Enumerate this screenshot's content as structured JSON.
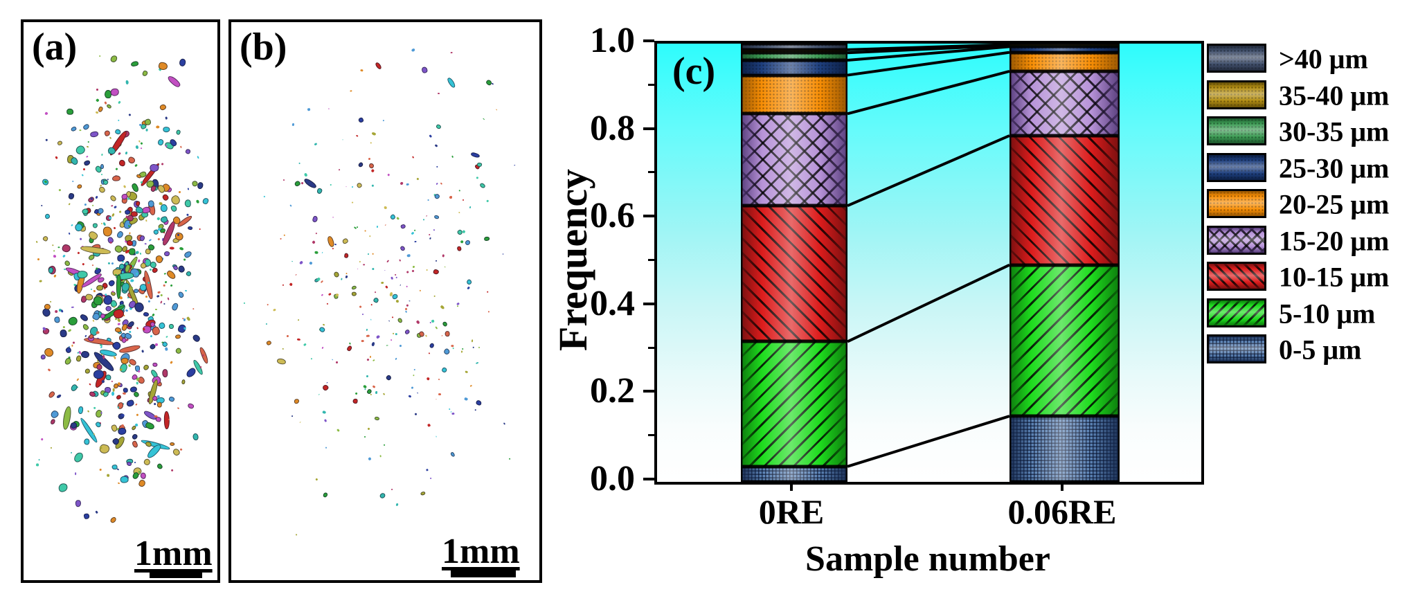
{
  "figure": {
    "panels": [
      {
        "id": "a",
        "label": "(a)",
        "scale_label": "1mm"
      },
      {
        "id": "b",
        "label": "(b)",
        "scale_label": "1mm"
      }
    ],
    "chart": {
      "label": "(c)",
      "ylabel": "Frequency",
      "xlabel": "Sample number",
      "ytick_labels": [
        "1.0",
        "0.8",
        "0.6",
        "0.4",
        "0.2",
        "0.0"
      ],
      "background_top_color": "#2efcfc",
      "background_bottom_color": "#ffffff"
    }
  },
  "chart_data": {
    "type": "bar",
    "stacked": true,
    "title": "",
    "xlabel": "Sample number",
    "ylabel": "Frequency",
    "categories": [
      "0RE",
      "0.06RE"
    ],
    "ylim": [
      0.0,
      1.0
    ],
    "yticks_major": [
      0.0,
      0.2,
      0.4,
      0.6,
      0.8,
      1.0
    ],
    "yticks_minor": [
      0.1,
      0.3,
      0.5,
      0.7,
      0.9
    ],
    "legend_position": "right",
    "legend_order_top_to_bottom": [
      ">40 μm",
      "35-40 μm",
      "30-35 μm",
      "25-30 μm",
      "20-25 μm",
      "15-20 μm",
      "10-15 μm",
      "5-10 μm",
      "0-5 μm"
    ],
    "connector_lines_between_bars": true,
    "series": [
      {
        "name": "0-5 μm",
        "values": [
          0.035,
          0.15
        ],
        "color": "#5b82b4",
        "edge": "#15284c",
        "pattern": "fine-grid"
      },
      {
        "name": "5-10 μm",
        "values": [
          0.285,
          0.345
        ],
        "color": "#1edc1e",
        "edge": "#0b720b",
        "pattern": "hatch-up"
      },
      {
        "name": "10-15 μm",
        "values": [
          0.31,
          0.295
        ],
        "color": "#dc1c1c",
        "edge": "#6e0e0e",
        "pattern": "hatch-down"
      },
      {
        "name": "15-20 μm",
        "values": [
          0.21,
          0.147
        ],
        "color": "#b793d8",
        "edge": "#4f3573",
        "pattern": "crosshatch"
      },
      {
        "name": "20-25 μm",
        "values": [
          0.088,
          0.043
        ],
        "color": "#f88e05",
        "edge": "#8f5203",
        "pattern": "stipple"
      },
      {
        "name": "25-30 μm",
        "values": [
          0.034,
          0.013
        ],
        "color": "#1e3f7e",
        "edge": "#0a1b3d",
        "pattern": "stipple"
      },
      {
        "name": "30-35 μm",
        "values": [
          0.017,
          0.003
        ],
        "color": "#3c9b54",
        "edge": "#194e28",
        "pattern": "stipple"
      },
      {
        "name": "35-40 μm",
        "values": [
          0.007,
          0.002
        ],
        "color": "#b28d13",
        "edge": "#5e4a07",
        "pattern": "stipple"
      },
      {
        "name": ">40 μm",
        "values": [
          0.014,
          0.002
        ],
        "color": "#41506c",
        "edge": "#1e2636",
        "pattern": "stipple"
      }
    ]
  },
  "particles": {
    "palette": [
      "#c22626",
      "#2a9e3a",
      "#2b3fa0",
      "#35c3d6",
      "#c24fc2",
      "#df8a26",
      "#a6a636",
      "#7e55c8",
      "#3fc9a8",
      "#2a3a86",
      "#d8654a",
      "#8cbb44",
      "#cdbb55",
      "#b03868",
      "#4f9ad6",
      "#32b6ae"
    ],
    "panel_a": {
      "count": 640,
      "seed": 7,
      "note": "dense field of irregular colored particles, some elongated"
    },
    "panel_b": {
      "count": 300,
      "seed": 13,
      "note": "sparse field of small colored particles"
    }
  }
}
